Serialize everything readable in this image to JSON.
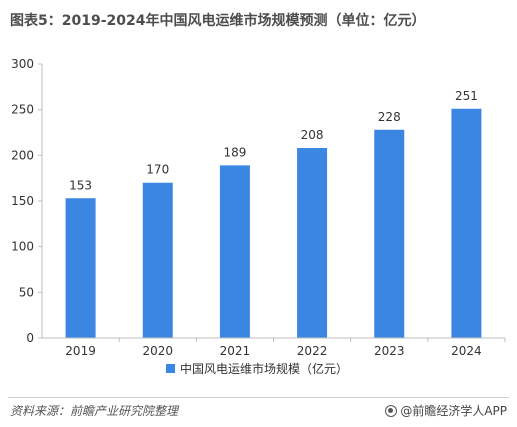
{
  "title": "图表5：2019-2024年中国风电运维市场规模预测（单位：亿元）",
  "footer": {
    "source": "资料来源：前瞻产业研究院整理",
    "brand": "@前瞻经济学人APP"
  },
  "colors": {
    "bar": "#3a86e2",
    "axis": "#bfbfbf"
  },
  "chart_data": {
    "type": "bar",
    "categories": [
      "2019",
      "2020",
      "2021",
      "2022",
      "2023",
      "2024"
    ],
    "series": [
      {
        "name": "中国风电运维市场规模（亿元）",
        "values": [
          153,
          170,
          189,
          208,
          228,
          251
        ]
      }
    ],
    "data_labels": [
      "153",
      "170",
      "189",
      "208",
      "228",
      "251"
    ],
    "y_ticks": [
      "0",
      "50",
      "100",
      "150",
      "200",
      "250",
      "300"
    ],
    "ylim": [
      0,
      300
    ],
    "xlabel": "",
    "ylabel": "",
    "grid": false,
    "legend_position": "bottom"
  }
}
